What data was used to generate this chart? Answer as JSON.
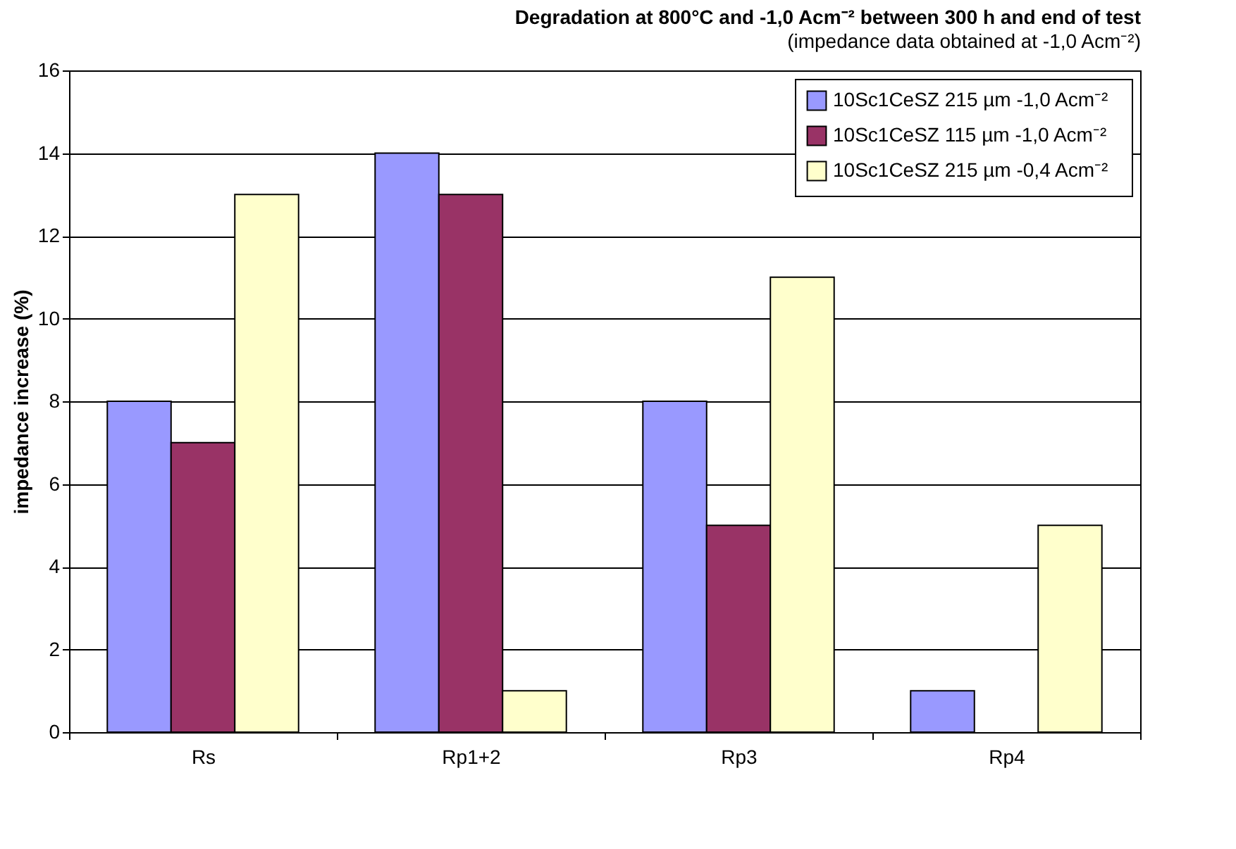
{
  "chart_data": {
    "type": "bar",
    "title": "Degradation at 800°C and -1,0 Acm⁻² between 300 h and end of test",
    "subtitle": "(impedance data obtained at -1,0 Acm⁻²)",
    "ylabel": "impedance increase (%)",
    "categories": [
      "Rs",
      "Rp1+2",
      "Rp3",
      "Rp4"
    ],
    "series": [
      {
        "name": "10Sc1CeSZ 215 µm   -1,0 Acm⁻²",
        "color": "#9999ff",
        "values": [
          8,
          14,
          8,
          1
        ]
      },
      {
        "name": "10Sc1CeSZ 115 µm   -1,0 Acm⁻²",
        "color": "#993366",
        "values": [
          7,
          13,
          5,
          null
        ]
      },
      {
        "name": "10Sc1CeSZ 215 µm   -0,4 Acm⁻²",
        "color": "#ffffcc",
        "values": [
          13,
          1,
          11,
          5
        ]
      }
    ],
    "ylim": [
      0,
      16
    ],
    "yticks": [
      0,
      2,
      4,
      6,
      8,
      10,
      12,
      14,
      16
    ],
    "grid": "y",
    "legend": "top right"
  }
}
